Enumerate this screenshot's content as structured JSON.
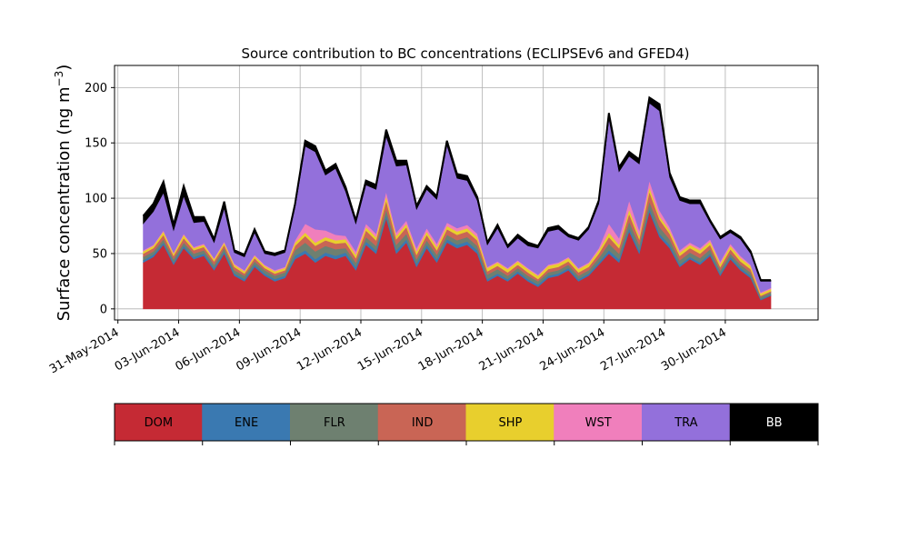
{
  "chart_data": {
    "type": "area",
    "stacked": true,
    "title": "Source contribution to BC concentrations (ECLIPSEv6 and GFED4)",
    "ylabel": "Surface concentration (ng m",
    "ylabel_sup": "−3",
    "ylabel_close": ")",
    "xlabel": "",
    "ylim": [
      -10,
      220
    ],
    "yticks": [
      0,
      50,
      100,
      150,
      200
    ],
    "xlim": [
      "2014-05-30T20:00",
      "2014-07-04T14:00"
    ],
    "xtick_dates": [
      "2014-05-31",
      "2014-06-03",
      "2014-06-06",
      "2014-06-09",
      "2014-06-12",
      "2014-06-15",
      "2014-06-18",
      "2014-06-21",
      "2014-06-24",
      "2014-06-27",
      "2014-06-30"
    ],
    "xtick_labels": [
      "31-May-2014",
      "03-Jun-2014",
      "06-Jun-2014",
      "09-Jun-2014",
      "12-Jun-2014",
      "15-Jun-2014",
      "18-Jun-2014",
      "21-Jun-2014",
      "24-Jun-2014",
      "27-Jun-2014",
      "30-Jun-2014"
    ],
    "grid": true,
    "x": [
      "2014-06-01T06:00",
      "2014-06-01T18:00",
      "2014-06-02T06:00",
      "2014-06-02T18:00",
      "2014-06-03T06:00",
      "2014-06-03T18:00",
      "2014-06-04T06:00",
      "2014-06-04T18:00",
      "2014-06-05T06:00",
      "2014-06-05T18:00",
      "2014-06-06T06:00",
      "2014-06-06T18:00",
      "2014-06-07T06:00",
      "2014-06-07T18:00",
      "2014-06-08T06:00",
      "2014-06-08T18:00",
      "2014-06-09T06:00",
      "2014-06-09T18:00",
      "2014-06-10T06:00",
      "2014-06-10T18:00",
      "2014-06-11T06:00",
      "2014-06-11T18:00",
      "2014-06-12T06:00",
      "2014-06-12T18:00",
      "2014-06-13T06:00",
      "2014-06-13T18:00",
      "2014-06-14T06:00",
      "2014-06-14T18:00",
      "2014-06-15T06:00",
      "2014-06-15T18:00",
      "2014-06-16T06:00",
      "2014-06-16T18:00",
      "2014-06-17T06:00",
      "2014-06-17T18:00",
      "2014-06-18T06:00",
      "2014-06-18T18:00",
      "2014-06-19T06:00",
      "2014-06-19T18:00",
      "2014-06-20T06:00",
      "2014-06-20T18:00",
      "2014-06-21T06:00",
      "2014-06-21T18:00",
      "2014-06-22T06:00",
      "2014-06-22T18:00",
      "2014-06-23T06:00",
      "2014-06-23T18:00",
      "2014-06-24T06:00",
      "2014-06-24T18:00",
      "2014-06-25T06:00",
      "2014-06-25T18:00",
      "2014-06-26T06:00",
      "2014-06-26T18:00",
      "2014-06-27T06:00",
      "2014-06-27T18:00",
      "2014-06-28T06:00",
      "2014-06-28T18:00",
      "2014-06-29T06:00",
      "2014-06-29T18:00",
      "2014-06-30T06:00",
      "2014-06-30T18:00",
      "2014-07-01T06:00",
      "2014-07-01T18:00",
      "2014-07-02T06:00"
    ],
    "series": [
      {
        "name": "DOM",
        "color": "#c52a34",
        "values": [
          42,
          47,
          58,
          40,
          55,
          45,
          48,
          35,
          50,
          30,
          25,
          38,
          30,
          25,
          28,
          45,
          50,
          42,
          48,
          45,
          48,
          35,
          58,
          50,
          82,
          50,
          60,
          38,
          55,
          42,
          60,
          55,
          58,
          50,
          25,
          30,
          25,
          32,
          25,
          20,
          28,
          30,
          35,
          25,
          30,
          40,
          50,
          42,
          70,
          50,
          88,
          65,
          55,
          38,
          45,
          40,
          48,
          30,
          45,
          35,
          28,
          8,
          12
        ]
      },
      {
        "name": "ENE",
        "color": "#3a79b1",
        "values": [
          2,
          2,
          2,
          2,
          2,
          2,
          2,
          2,
          2,
          2,
          2,
          2,
          2,
          2,
          2,
          3,
          3,
          3,
          3,
          3,
          3,
          3,
          3,
          3,
          3,
          3,
          3,
          3,
          3,
          3,
          3,
          3,
          3,
          3,
          2,
          2,
          2,
          2,
          2,
          2,
          2,
          2,
          2,
          2,
          2,
          2,
          3,
          3,
          3,
          3,
          3,
          3,
          3,
          2,
          2,
          2,
          2,
          2,
          2,
          2,
          2,
          1,
          1
        ]
      },
      {
        "name": "FLR",
        "color": "#6e8070",
        "values": [
          3,
          3,
          3,
          3,
          3,
          3,
          3,
          3,
          3,
          3,
          3,
          3,
          3,
          3,
          3,
          5,
          7,
          7,
          6,
          6,
          4,
          4,
          4,
          4,
          5,
          5,
          5,
          4,
          4,
          4,
          4,
          4,
          4,
          4,
          4,
          4,
          3,
          3,
          3,
          3,
          3,
          3,
          3,
          3,
          3,
          4,
          6,
          5,
          6,
          5,
          6,
          6,
          5,
          4,
          4,
          4,
          4,
          3,
          3,
          3,
          3,
          2,
          2
        ]
      },
      {
        "name": "IND",
        "color": "#c96555",
        "values": [
          3,
          3,
          4,
          3,
          4,
          3,
          3,
          3,
          3,
          3,
          2,
          3,
          2,
          2,
          2,
          4,
          6,
          5,
          5,
          5,
          5,
          4,
          6,
          5,
          8,
          5,
          6,
          4,
          5,
          4,
          5,
          5,
          5,
          5,
          3,
          3,
          3,
          3,
          3,
          2,
          3,
          3,
          3,
          3,
          3,
          4,
          6,
          5,
          7,
          5,
          9,
          7,
          5,
          4,
          4,
          4,
          4,
          3,
          4,
          3,
          3,
          1,
          1
        ]
      },
      {
        "name": "SHP",
        "color": "#e8cf2d",
        "values": [
          2,
          2,
          3,
          2,
          3,
          2,
          2,
          2,
          2,
          2,
          2,
          2,
          2,
          2,
          2,
          3,
          3,
          3,
          3,
          3,
          3,
          3,
          3,
          3,
          4,
          3,
          3,
          3,
          3,
          3,
          3,
          3,
          3,
          3,
          3,
          3,
          3,
          3,
          3,
          3,
          3,
          3,
          3,
          3,
          3,
          3,
          4,
          3,
          4,
          3,
          4,
          3,
          3,
          3,
          3,
          3,
          3,
          3,
          3,
          3,
          3,
          2,
          2
        ]
      },
      {
        "name": "WST",
        "color": "#f07fbc",
        "values": [
          1,
          1,
          1,
          1,
          1,
          1,
          1,
          1,
          1,
          1,
          1,
          1,
          1,
          1,
          1,
          2,
          8,
          12,
          6,
          5,
          3,
          3,
          3,
          3,
          4,
          3,
          3,
          3,
          3,
          3,
          3,
          3,
          3,
          3,
          1,
          1,
          1,
          1,
          1,
          1,
          1,
          1,
          1,
          1,
          1,
          2,
          8,
          6,
          8,
          5,
          6,
          5,
          3,
          2,
          2,
          2,
          2,
          2,
          2,
          2,
          1,
          1,
          1
        ]
      },
      {
        "name": "TRA",
        "color": "#9370db",
        "values": [
          24,
          30,
          34,
          20,
          34,
          22,
          20,
          14,
          30,
          10,
          12,
          20,
          10,
          13,
          13,
          30,
          70,
          70,
          50,
          60,
          40,
          25,
          35,
          40,
          50,
          60,
          50,
          35,
          35,
          40,
          70,
          45,
          40,
          30,
          20,
          30,
          18,
          20,
          20,
          24,
          30,
          30,
          18,
          25,
          30,
          40,
          95,
          60,
          40,
          60,
          70,
          90,
          45,
          45,
          35,
          40,
          15,
          20,
          10,
          15,
          10,
          10,
          6
        ]
      },
      {
        "name": "BB",
        "color": "#000000",
        "values": [
          7,
          7,
          10,
          5,
          9,
          5,
          4,
          3,
          6,
          2,
          2,
          3,
          2,
          2,
          2,
          3,
          5,
          5,
          4,
          4,
          4,
          3,
          4,
          4,
          6,
          5,
          4,
          3,
          3,
          3,
          4,
          4,
          4,
          3,
          2,
          3,
          2,
          3,
          3,
          2,
          3,
          3,
          2,
          2,
          2,
          3,
          5,
          4,
          4,
          4,
          5,
          6,
          4,
          3,
          3,
          3,
          2,
          2,
          2,
          2,
          2,
          1,
          1
        ]
      }
    ],
    "legend": {
      "placement": "below",
      "labels": [
        "DOM",
        "ENE",
        "FLR",
        "IND",
        "SHP",
        "WST",
        "TRA",
        "BB"
      ],
      "colors": [
        "#c52a34",
        "#3a79b1",
        "#6e8070",
        "#c96555",
        "#e8cf2d",
        "#f07fbc",
        "#9370db",
        "#000000"
      ],
      "text_colors": [
        "#000000",
        "#000000",
        "#000000",
        "#000000",
        "#000000",
        "#000000",
        "#000000",
        "#ffffff"
      ]
    }
  }
}
